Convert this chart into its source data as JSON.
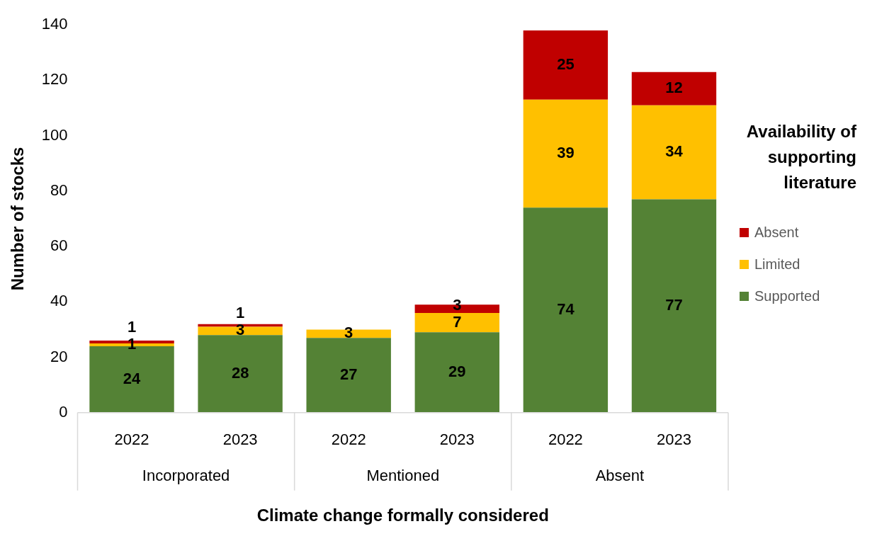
{
  "chart_data": {
    "type": "bar",
    "stacked": true,
    "xlabel": "Climate change formally considered",
    "ylabel": "Number of stocks",
    "legend_title": "Availability of supporting literature",
    "legend": "right",
    "categories": [
      "2022",
      "2023",
      "2022",
      "2023",
      "2022",
      "2023"
    ],
    "annotations": [
      "Incorporated",
      "Mentioned",
      "Absent"
    ],
    "series": [
      {
        "name": "Supported",
        "color": "#548235",
        "values": [
          24,
          28,
          27,
          29,
          74,
          77
        ]
      },
      {
        "name": "Limited",
        "color": "#ffc000",
        "values": [
          1,
          3,
          3,
          7,
          39,
          34
        ]
      },
      {
        "name": "Absent",
        "color": "#c00000",
        "values": [
          1,
          1,
          null,
          3,
          25,
          12
        ]
      }
    ],
    "ylim": [
      0,
      140
    ],
    "yticks": [
      0,
      20,
      40,
      60,
      80,
      100,
      120,
      140
    ],
    "data_labels": true
  }
}
